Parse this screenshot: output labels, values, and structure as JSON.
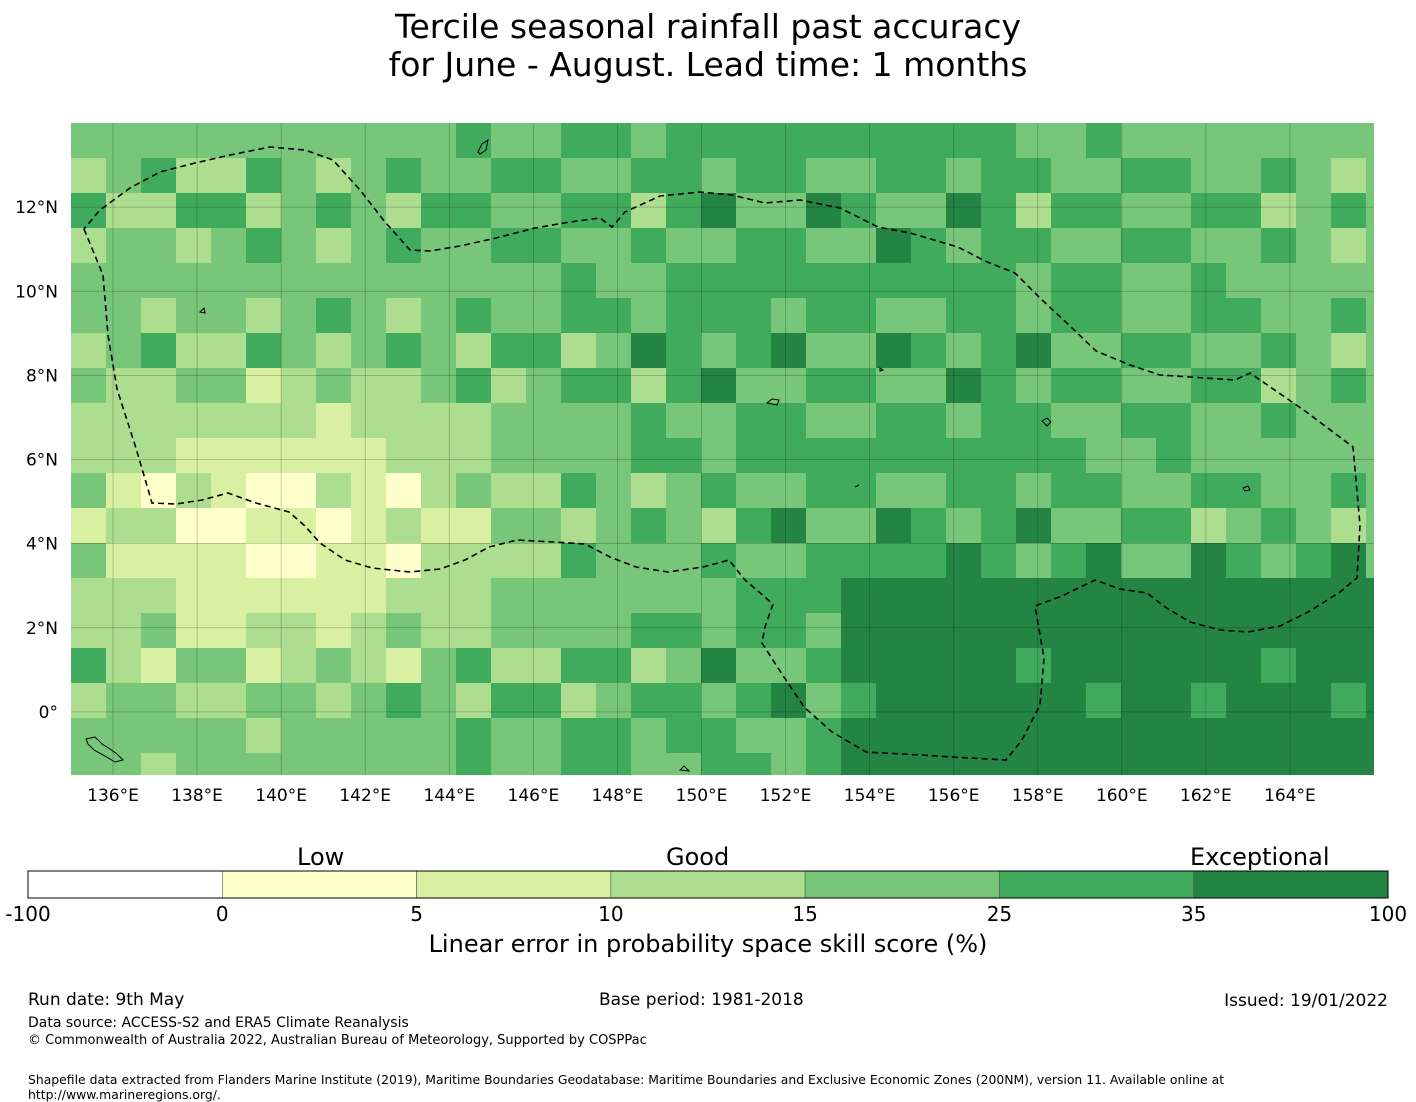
{
  "title": {
    "line1": "Tercile seasonal rainfall past accuracy",
    "line2": "for June - August. Lead time: 1 months"
  },
  "map": {
    "lon_range": [
      135,
      166
    ],
    "lat_range": [
      -1.5,
      14
    ],
    "lon_ticks": [
      "136°E",
      "138°E",
      "140°E",
      "142°E",
      "144°E",
      "146°E",
      "148°E",
      "150°E",
      "152°E",
      "154°E",
      "156°E",
      "158°E",
      "160°E",
      "162°E",
      "164°E"
    ],
    "lat_ticks": [
      "12°N",
      "10°N",
      "8°N",
      "6°N",
      "4°N",
      "2°N",
      "0°"
    ],
    "gridlines": true,
    "region": "Federated States of Micronesia EEZ (dashed boundary)"
  },
  "colorbar": {
    "category_labels": {
      "low": "Low",
      "good": "Good",
      "exceptional": "Exceptional"
    },
    "bounds": [
      "-100",
      "0",
      "5",
      "10",
      "15",
      "25",
      "35",
      "100"
    ],
    "colors": [
      "#ffffff",
      "#ffffcc",
      "#d9f0a3",
      "#addd8e",
      "#78c679",
      "#41ab5d",
      "#238443"
    ],
    "title": "Linear error in probability space skill score (%)"
  },
  "footer": {
    "run_date": "Run date: 9th May",
    "base_period": "Base period: 1981-2018",
    "issued": "Issued: 19/01/2022",
    "data_source": "Data source: ACCESS-S2 and ERA5 Climate Reanalysis",
    "copyright": "© Commonwealth of Australia 2022, Australian Bureau of Meteorology, Supported by COSPPac",
    "shapefile": "Shapefile data extracted from Flanders Marine Institute (2019), Maritime Boundaries Geodatabase: Maritime Boundaries and Exclusive Economic Zones (200NM), version 11. Available online at http://www.marineregions.org/."
  }
}
